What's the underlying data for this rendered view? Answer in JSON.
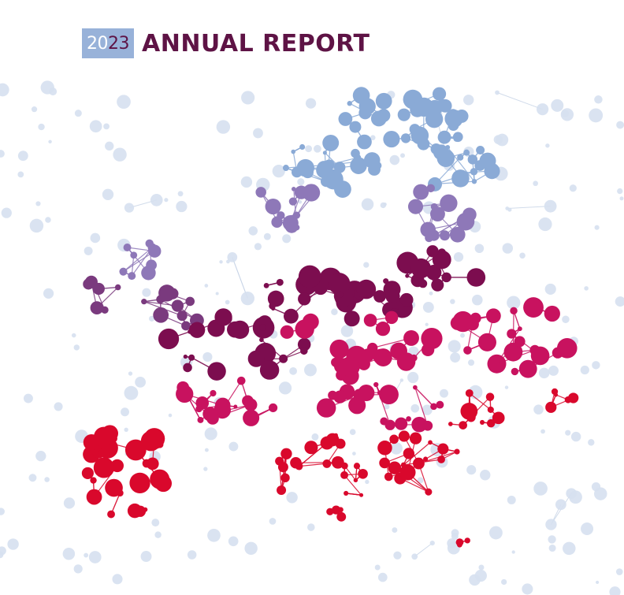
{
  "header": {
    "year_prefix": "20",
    "year_suffix": "23",
    "title": "ANNUAL REPORT"
  },
  "illustration": {
    "subject": "network-map-of-europe",
    "colors": {
      "background_nodes": "#d6e0ef",
      "background_links": "#c6d3e6",
      "north": "#8aaad6",
      "north_mid": "#8e78b8",
      "mid": "#7a3a7e",
      "center": "#7c0d4f",
      "center_pink": "#c8125f",
      "south": "#d9082c",
      "badge": "#98b2d9",
      "title": "#5e1345"
    }
  }
}
